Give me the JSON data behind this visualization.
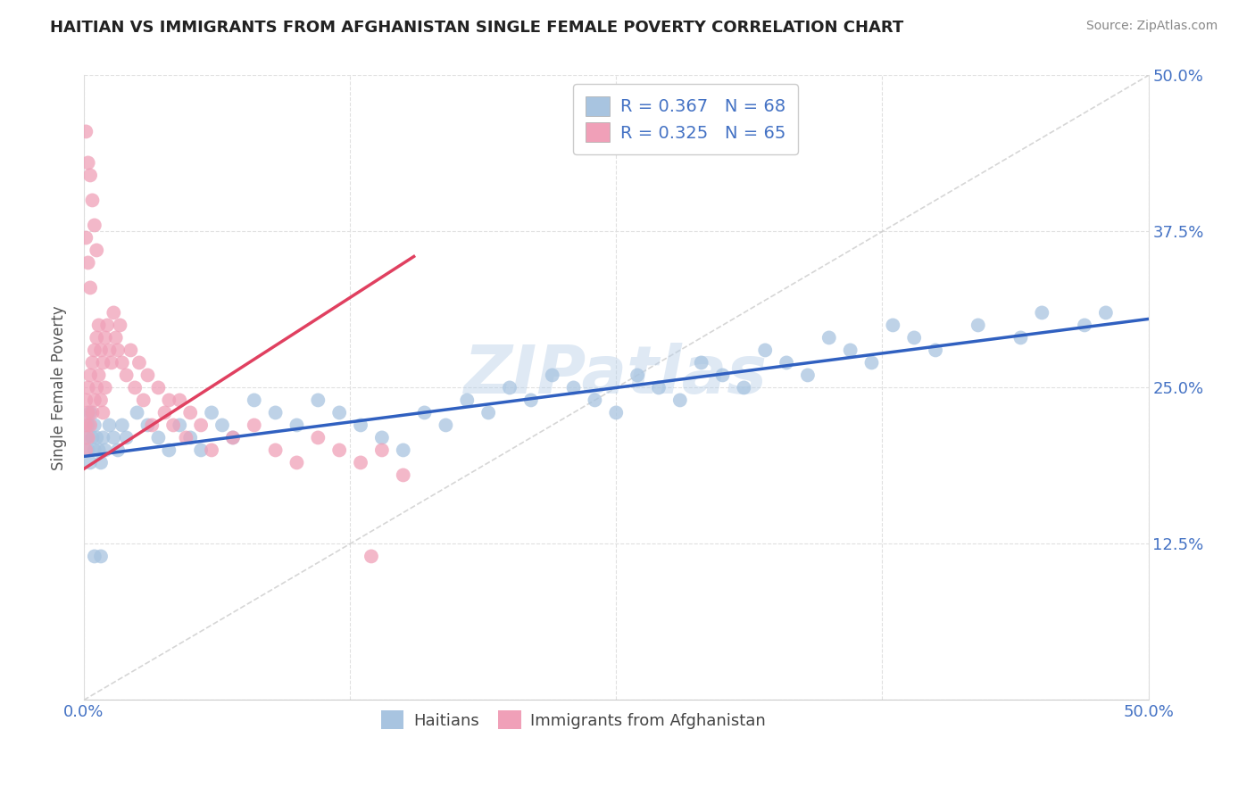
{
  "title": "HAITIAN VS IMMIGRANTS FROM AFGHANISTAN SINGLE FEMALE POVERTY CORRELATION CHART",
  "source": "Source: ZipAtlas.com",
  "ylabel": "Single Female Poverty",
  "xlim": [
    0.0,
    0.5
  ],
  "ylim": [
    0.0,
    0.5
  ],
  "xticks": [
    0.0,
    0.125,
    0.25,
    0.375,
    0.5
  ],
  "xticklabels": [
    "0.0%",
    "",
    "",
    "",
    "50.0%"
  ],
  "yticks": [
    0.0,
    0.125,
    0.25,
    0.375,
    0.5
  ],
  "yticklabels_right": [
    "",
    "12.5%",
    "25.0%",
    "37.5%",
    "50.0%"
  ],
  "R_blue": 0.367,
  "N_blue": 68,
  "R_pink": 0.325,
  "N_pink": 65,
  "blue_color": "#a8c4e0",
  "pink_color": "#f0a0b8",
  "blue_line_color": "#3060c0",
  "pink_line_color": "#e04060",
  "watermark": "ZIPatlas",
  "blue_trend_x0": 0.0,
  "blue_trend_y0": 0.195,
  "blue_trend_x1": 0.5,
  "blue_trend_y1": 0.305,
  "pink_trend_x0": 0.0,
  "pink_trend_y0": 0.185,
  "pink_trend_x1": 0.155,
  "pink_trend_y1": 0.355,
  "haitians_x": [
    0.001,
    0.002,
    0.002,
    0.003,
    0.003,
    0.004,
    0.005,
    0.005,
    0.006,
    0.007,
    0.008,
    0.009,
    0.01,
    0.012,
    0.014,
    0.016,
    0.018,
    0.02,
    0.025,
    0.03,
    0.035,
    0.04,
    0.045,
    0.05,
    0.055,
    0.06,
    0.065,
    0.07,
    0.08,
    0.09,
    0.1,
    0.11,
    0.12,
    0.13,
    0.14,
    0.15,
    0.16,
    0.17,
    0.18,
    0.19,
    0.2,
    0.21,
    0.22,
    0.23,
    0.24,
    0.25,
    0.26,
    0.27,
    0.28,
    0.29,
    0.3,
    0.31,
    0.32,
    0.33,
    0.34,
    0.35,
    0.36,
    0.37,
    0.38,
    0.39,
    0.4,
    0.42,
    0.44,
    0.45,
    0.47,
    0.48,
    0.005,
    0.008
  ],
  "haitians_y": [
    0.21,
    0.2,
    0.22,
    0.19,
    0.23,
    0.21,
    0.2,
    0.22,
    0.21,
    0.2,
    0.19,
    0.21,
    0.2,
    0.22,
    0.21,
    0.2,
    0.22,
    0.21,
    0.23,
    0.22,
    0.21,
    0.2,
    0.22,
    0.21,
    0.2,
    0.23,
    0.22,
    0.21,
    0.24,
    0.23,
    0.22,
    0.24,
    0.23,
    0.22,
    0.21,
    0.2,
    0.23,
    0.22,
    0.24,
    0.23,
    0.25,
    0.24,
    0.26,
    0.25,
    0.24,
    0.23,
    0.26,
    0.25,
    0.24,
    0.27,
    0.26,
    0.25,
    0.28,
    0.27,
    0.26,
    0.29,
    0.28,
    0.27,
    0.3,
    0.29,
    0.28,
    0.3,
    0.29,
    0.31,
    0.3,
    0.31,
    0.115,
    0.115
  ],
  "afghan_x": [
    0.001,
    0.001,
    0.001,
    0.002,
    0.002,
    0.002,
    0.003,
    0.003,
    0.004,
    0.004,
    0.005,
    0.005,
    0.006,
    0.006,
    0.007,
    0.007,
    0.008,
    0.008,
    0.009,
    0.009,
    0.01,
    0.01,
    0.011,
    0.012,
    0.013,
    0.014,
    0.015,
    0.016,
    0.017,
    0.018,
    0.02,
    0.022,
    0.024,
    0.026,
    0.028,
    0.03,
    0.032,
    0.035,
    0.038,
    0.04,
    0.042,
    0.045,
    0.048,
    0.05,
    0.055,
    0.06,
    0.07,
    0.08,
    0.09,
    0.1,
    0.11,
    0.12,
    0.13,
    0.14,
    0.15,
    0.002,
    0.003,
    0.004,
    0.005,
    0.006,
    0.001,
    0.002,
    0.003,
    0.001,
    0.135
  ],
  "afghan_y": [
    0.22,
    0.24,
    0.2,
    0.23,
    0.25,
    0.21,
    0.26,
    0.22,
    0.27,
    0.23,
    0.28,
    0.24,
    0.29,
    0.25,
    0.3,
    0.26,
    0.28,
    0.24,
    0.27,
    0.23,
    0.29,
    0.25,
    0.3,
    0.28,
    0.27,
    0.31,
    0.29,
    0.28,
    0.3,
    0.27,
    0.26,
    0.28,
    0.25,
    0.27,
    0.24,
    0.26,
    0.22,
    0.25,
    0.23,
    0.24,
    0.22,
    0.24,
    0.21,
    0.23,
    0.22,
    0.2,
    0.21,
    0.22,
    0.2,
    0.19,
    0.21,
    0.2,
    0.19,
    0.2,
    0.18,
    0.43,
    0.42,
    0.4,
    0.38,
    0.36,
    0.37,
    0.35,
    0.33,
    0.455,
    0.115
  ]
}
